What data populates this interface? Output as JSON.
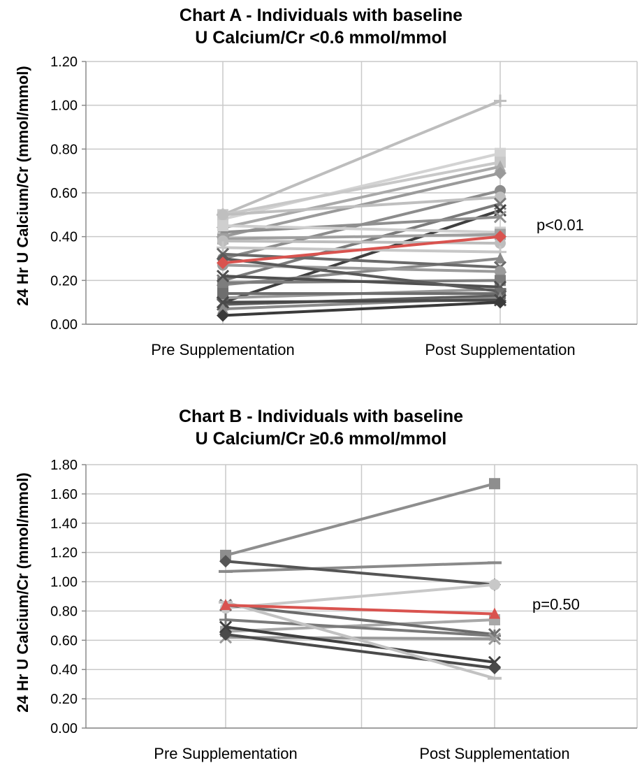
{
  "chart_data": [
    {
      "type": "line",
      "title_line1": "Chart A - Individuals with baseline",
      "title_line2": "U Calcium/Cr <0.6 mmol/mmol",
      "ylabel": "24 Hr U Calcium/Cr (mmol/mmol)",
      "xlabel": "",
      "categories": [
        "Pre Supplementation",
        "Post Supplementation"
      ],
      "ylim": [
        0,
        1.2
      ],
      "yticks": [
        "0.00",
        "0.20",
        "0.40",
        "0.60",
        "0.80",
        "1.00",
        "1.20"
      ],
      "grid": true,
      "annotation": "p<0.01",
      "highlight_color": "#d9534f",
      "series": [
        {
          "values": [
            0.5,
            1.02
          ],
          "color": "#bdbdbd",
          "marker": "plus"
        },
        {
          "values": [
            0.48,
            0.78
          ],
          "color": "#d3d3d3",
          "marker": "square"
        },
        {
          "values": [
            0.5,
            0.74
          ],
          "color": "#c8c8c8",
          "marker": "square"
        },
        {
          "values": [
            0.44,
            0.72
          ],
          "color": "#a9a9a9",
          "marker": "triangle"
        },
        {
          "values": [
            0.4,
            0.69
          ],
          "color": "#9a9a9a",
          "marker": "diamond"
        },
        {
          "values": [
            0.3,
            0.61
          ],
          "color": "#8c8c8c",
          "marker": "circle"
        },
        {
          "values": [
            0.5,
            0.58
          ],
          "color": "#bfbfbf",
          "marker": "circle"
        },
        {
          "values": [
            0.2,
            0.55
          ],
          "color": "#7a7a7a",
          "marker": "x"
        },
        {
          "values": [
            0.1,
            0.52
          ],
          "color": "#3f3f3f",
          "marker": "x"
        },
        {
          "values": [
            0.42,
            0.49
          ],
          "color": "#8f8f8f",
          "marker": "x"
        },
        {
          "values": [
            0.45,
            0.42
          ],
          "color": "#cfcfcf",
          "marker": "square"
        },
        {
          "values": [
            0.39,
            0.41
          ],
          "color": "#a0a0a0",
          "marker": "square"
        },
        {
          "values": [
            0.28,
            0.4
          ],
          "color": "#d9534f",
          "marker": "diamond"
        },
        {
          "values": [
            0.38,
            0.37
          ],
          "color": "#bdbdbd",
          "marker": "circle"
        },
        {
          "values": [
            0.35,
            0.33
          ],
          "color": "#c7c7c7",
          "marker": "plus"
        },
        {
          "values": [
            0.18,
            0.3
          ],
          "color": "#8a8a8a",
          "marker": "triangle"
        },
        {
          "values": [
            0.32,
            0.26
          ],
          "color": "#6a6a6a",
          "marker": "x"
        },
        {
          "values": [
            0.27,
            0.24
          ],
          "color": "#9b9b9b",
          "marker": "circle"
        },
        {
          "values": [
            0.19,
            0.2
          ],
          "color": "#7d7d7d",
          "marker": "square"
        },
        {
          "values": [
            0.22,
            0.17
          ],
          "color": "#4f4f4f",
          "marker": "x"
        },
        {
          "values": [
            0.12,
            0.16
          ],
          "color": "#9a9a9a",
          "marker": "plus"
        },
        {
          "values": [
            0.3,
            0.15
          ],
          "color": "#5a5a5a",
          "marker": "diamond"
        },
        {
          "values": [
            0.14,
            0.14
          ],
          "color": "#6e6e6e",
          "marker": "square"
        },
        {
          "values": [
            0.09,
            0.13
          ],
          "color": "#5f5f5f",
          "marker": "x"
        },
        {
          "values": [
            0.07,
            0.12
          ],
          "color": "#8a8a8a",
          "marker": "triangle"
        },
        {
          "values": [
            0.1,
            0.11
          ],
          "color": "#4a4a4a",
          "marker": "x"
        },
        {
          "values": [
            0.04,
            0.1
          ],
          "color": "#3a3a3a",
          "marker": "diamond"
        }
      ]
    },
    {
      "type": "line",
      "title_line1": "Chart B - Individuals with baseline",
      "title_line2": "U Calcium/Cr ≥0.6 mmol/mmol",
      "ylabel": "24 Hr U Calcium/Cr (mmol/mmol)",
      "xlabel": "",
      "categories": [
        "Pre Supplementation",
        "Post Supplementation"
      ],
      "ylim": [
        0,
        1.8
      ],
      "yticks": [
        "0.00",
        "0.20",
        "0.40",
        "0.60",
        "0.80",
        "1.00",
        "1.20",
        "1.40",
        "1.60",
        "1.80"
      ],
      "grid": true,
      "annotation": "p=0.50",
      "highlight_color": "#d9534f",
      "series": [
        {
          "values": [
            1.18,
            1.67
          ],
          "color": "#8e8e8e",
          "marker": "square"
        },
        {
          "values": [
            1.07,
            1.13
          ],
          "color": "#8a8a8a",
          "marker": "dash"
        },
        {
          "values": [
            1.14,
            0.98
          ],
          "color": "#555555",
          "marker": "diamond"
        },
        {
          "values": [
            0.82,
            0.98
          ],
          "color": "#c8c8c8",
          "marker": "circle"
        },
        {
          "values": [
            0.84,
            0.78
          ],
          "color": "#d9534f",
          "marker": "triangle"
        },
        {
          "values": [
            0.66,
            0.74
          ],
          "color": "#a8a8a8",
          "marker": "square"
        },
        {
          "values": [
            0.84,
            0.64
          ],
          "color": "#6b6b6b",
          "marker": "x"
        },
        {
          "values": [
            0.74,
            0.63
          ],
          "color": "#7a7a7a",
          "marker": "plus"
        },
        {
          "values": [
            0.62,
            0.61
          ],
          "color": "#999999",
          "marker": "x"
        },
        {
          "values": [
            0.69,
            0.45
          ],
          "color": "#3f3f3f",
          "marker": "x"
        },
        {
          "values": [
            0.64,
            0.41
          ],
          "color": "#4a4a4a",
          "marker": "diamond"
        },
        {
          "values": [
            0.86,
            0.34
          ],
          "color": "#c2c2c2",
          "marker": "dash"
        }
      ]
    }
  ]
}
